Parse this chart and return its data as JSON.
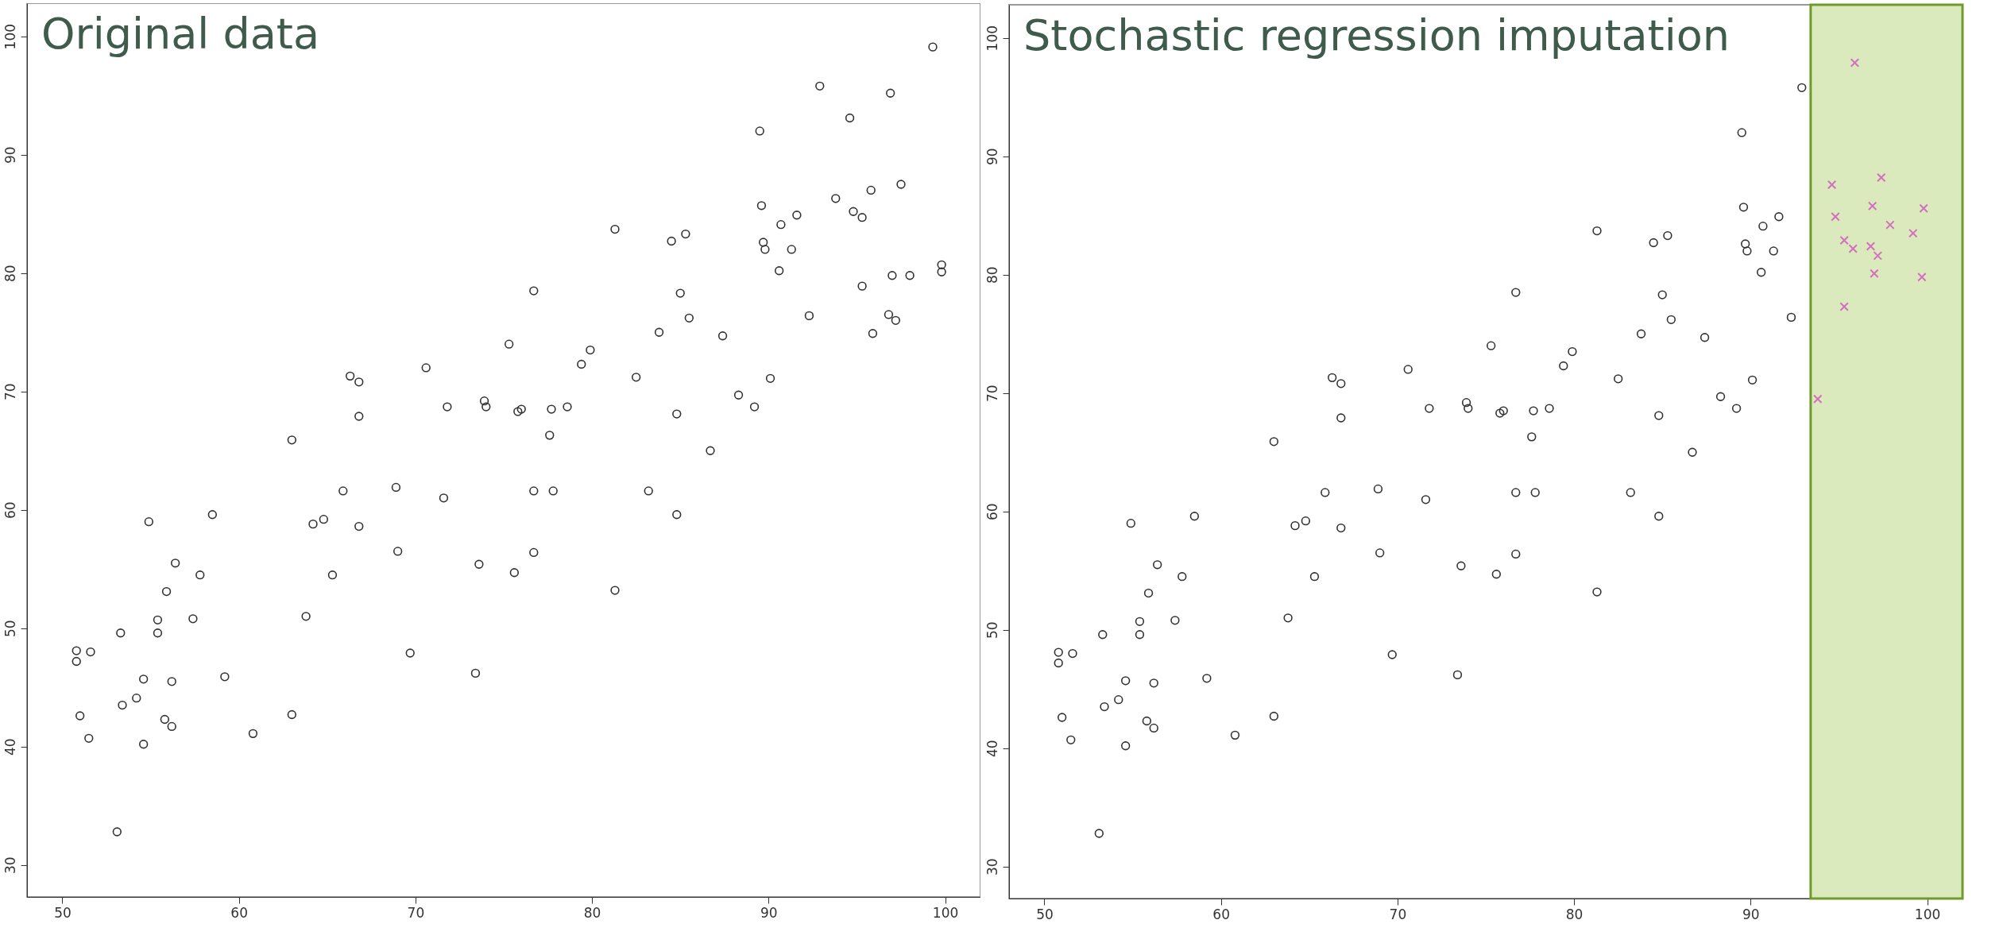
{
  "chart_data": [
    {
      "type": "scatter",
      "title": "Original data",
      "xlim": [
        48,
        102
      ],
      "ylim": [
        27.3,
        102.8
      ],
      "xticks": [
        50,
        60,
        70,
        80,
        90,
        100
      ],
      "yticks": [
        30,
        40,
        50,
        60,
        70,
        80,
        90,
        100
      ],
      "marker": "circle",
      "grid": false,
      "series": [
        {
          "color": "#333333",
          "x": [
            70.6,
            66.3,
            66.8,
            66.8,
            63.0,
            71.8,
            92.9,
            89.5,
            89.6,
            91.6,
            90.7,
            81.3,
            84.5,
            85.3,
            89.7,
            89.8,
            91.3,
            90.6,
            76.7,
            85.0,
            85.5,
            92.3,
            83.8,
            87.4,
            75.3,
            79.9,
            79.4,
            82.5,
            90.1,
            88.3,
            89.2,
            73.9,
            74.0,
            75.8,
            76.0,
            77.7,
            78.6,
            84.8,
            77.6,
            86.7,
            65.9,
            68.9,
            71.6,
            58.5,
            54.9,
            64.2,
            64.8,
            66.8,
            69.0,
            56.4,
            57.8,
            65.3,
            55.9,
            63.8,
            55.4,
            57.4,
            53.3,
            55.4,
            50.8,
            51.6,
            50.8,
            69.7,
            73.4,
            54.6,
            56.2,
            59.2,
            54.2,
            53.4,
            63.0,
            51.0,
            55.8,
            56.2,
            60.8,
            51.5,
            54.6,
            53.1,
            76.7,
            77.8,
            83.2,
            84.8,
            76.7,
            73.6,
            75.6,
            81.3,
            99.3,
            96.9,
            94.6,
            97.5,
            95.8,
            93.8,
            94.8,
            95.3,
            99.8,
            99.8,
            97.0,
            98.0,
            95.3,
            96.8,
            97.2,
            95.9
          ],
          "values": [
            72.0,
            71.3,
            70.8,
            67.9,
            65.9,
            68.7,
            95.8,
            92.0,
            85.7,
            84.9,
            84.1,
            83.7,
            82.7,
            83.3,
            82.6,
            82.0,
            82.0,
            80.2,
            78.5,
            78.3,
            76.2,
            76.4,
            75.0,
            74.7,
            74.0,
            73.5,
            72.3,
            71.2,
            71.1,
            69.7,
            68.7,
            69.2,
            68.7,
            68.3,
            68.5,
            68.5,
            68.7,
            68.1,
            66.3,
            65.0,
            61.6,
            61.9,
            61.0,
            59.6,
            59.0,
            58.8,
            59.2,
            58.6,
            56.5,
            55.5,
            54.5,
            54.5,
            53.1,
            51.0,
            50.7,
            50.8,
            49.6,
            49.6,
            48.1,
            48.0,
            47.2,
            47.9,
            46.2,
            45.7,
            45.5,
            45.9,
            44.1,
            43.5,
            42.7,
            42.6,
            42.3,
            41.7,
            41.1,
            40.7,
            40.2,
            32.8,
            61.6,
            61.6,
            61.6,
            59.6,
            56.4,
            55.4,
            54.7,
            53.2,
            99.1,
            95.2,
            93.1,
            87.5,
            87.0,
            86.3,
            85.2,
            84.7,
            80.7,
            80.1,
            79.8,
            79.8,
            78.9,
            76.5,
            76.0,
            74.9
          ]
        }
      ]
    },
    {
      "type": "scatter",
      "title": "Stochastic regression imputation",
      "xlim": [
        48,
        102
      ],
      "ylim": [
        27.3,
        102.8
      ],
      "xticks": [
        50,
        60,
        70,
        80,
        90,
        100
      ],
      "yticks": [
        30,
        40,
        50,
        60,
        70,
        80,
        90,
        100
      ],
      "marker": "circle",
      "grid": false,
      "bands": [
        {
          "axis": "x",
          "from": 93.4,
          "to": 102,
          "color": "#dbeabd"
        }
      ],
      "series": [
        {
          "color": "#333333",
          "x": [
            70.6,
            66.3,
            66.8,
            66.8,
            63.0,
            71.8,
            92.9,
            89.5,
            89.6,
            91.6,
            90.7,
            81.3,
            84.5,
            85.3,
            89.7,
            89.8,
            91.3,
            90.6,
            76.7,
            85.0,
            85.5,
            92.3,
            83.8,
            87.4,
            75.3,
            79.9,
            79.4,
            82.5,
            90.1,
            88.3,
            89.2,
            73.9,
            74.0,
            75.8,
            76.0,
            77.7,
            78.6,
            84.8,
            77.6,
            86.7,
            65.9,
            68.9,
            71.6,
            58.5,
            54.9,
            64.2,
            64.8,
            66.8,
            69.0,
            56.4,
            57.8,
            65.3,
            55.9,
            63.8,
            55.4,
            57.4,
            53.3,
            55.4,
            50.8,
            51.6,
            50.8,
            69.7,
            73.4,
            54.6,
            56.2,
            59.2,
            54.2,
            53.4,
            63.0,
            51.0,
            55.8,
            56.2,
            60.8,
            51.5,
            54.6,
            53.1,
            76.7,
            77.8,
            83.2,
            84.8,
            76.7,
            73.6,
            75.6,
            81.3
          ],
          "values": [
            72.0,
            71.3,
            70.8,
            67.9,
            65.9,
            68.7,
            95.8,
            92.0,
            85.7,
            84.9,
            84.1,
            83.7,
            82.7,
            83.3,
            82.6,
            82.0,
            82.0,
            80.2,
            78.5,
            78.3,
            76.2,
            76.4,
            75.0,
            74.7,
            74.0,
            73.5,
            72.3,
            71.2,
            71.1,
            69.7,
            68.7,
            69.2,
            68.7,
            68.3,
            68.5,
            68.5,
            68.7,
            68.1,
            66.3,
            65.0,
            61.6,
            61.9,
            61.0,
            59.6,
            59.0,
            58.8,
            59.2,
            58.6,
            56.5,
            55.5,
            54.5,
            54.5,
            53.1,
            51.0,
            50.7,
            50.8,
            49.6,
            49.6,
            48.1,
            48.0,
            47.2,
            47.9,
            46.2,
            45.7,
            45.5,
            45.9,
            44.1,
            43.5,
            42.7,
            42.6,
            42.3,
            41.7,
            41.1,
            40.7,
            40.2,
            32.8,
            61.6,
            61.6,
            61.6,
            59.6,
            56.4,
            55.4,
            54.7,
            53.2
          ]
        },
        {
          "color": "#d46fbf",
          "marker": "cross",
          "x": [
            95.9,
            94.6,
            97.4,
            96.9,
            99.8,
            94.8,
            97.9,
            99.2,
            95.3,
            95.8,
            96.8,
            97.2,
            97.0,
            99.7,
            95.3,
            93.8
          ],
          "values": [
            97.9,
            87.6,
            88.2,
            85.8,
            85.6,
            84.9,
            84.2,
            83.5,
            82.9,
            82.2,
            82.4,
            81.6,
            80.1,
            79.8,
            77.3,
            69.5
          ]
        }
      ]
    }
  ]
}
